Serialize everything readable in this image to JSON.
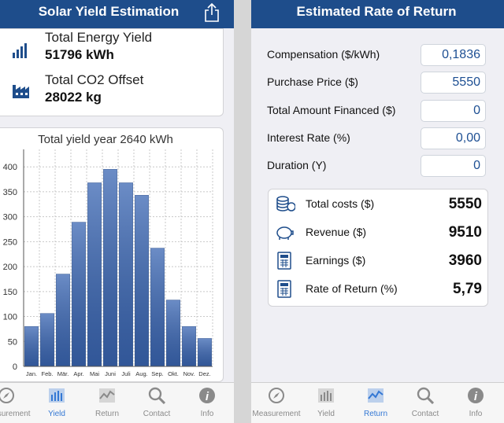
{
  "left_screen": {
    "header": {
      "title": "Solar Yield Estimation"
    },
    "summary": [
      {
        "label": "Total Energy Yield",
        "value": "51796 kWh"
      },
      {
        "label": "Total CO2 Offset",
        "value": "28022 kg"
      }
    ],
    "tabs": [
      "Measurement",
      "Yield",
      "Return",
      "Contact",
      "Info"
    ],
    "active_tab": 1
  },
  "chart_data": {
    "type": "bar",
    "title": "Total yield year 2640 kWh",
    "categories": [
      "Jan.",
      "Feb.",
      "Mär.",
      "Apr.",
      "Mai",
      "Juni",
      "Juli",
      "Aug.",
      "Sep.",
      "Okt.",
      "Nov.",
      "Dez."
    ],
    "values": [
      80,
      106,
      185,
      289,
      368,
      395,
      368,
      343,
      237,
      133,
      80,
      56
    ],
    "color": "#3a66b3",
    "ylim": [
      0,
      435
    ],
    "yticks": [
      0,
      50,
      100,
      150,
      200,
      250,
      300,
      350,
      400
    ],
    "grid": true
  },
  "right_screen": {
    "header": {
      "title": "Estimated Rate of Return"
    },
    "form": [
      {
        "label": "Compensation ($/kWh)",
        "value": "0,1836"
      },
      {
        "label": "Purchase Price ($)",
        "value": "5550"
      },
      {
        "label": "Total Amount Financed ($)",
        "value": "0"
      },
      {
        "label": "Interest Rate (%)",
        "value": "0,00"
      },
      {
        "label": "Duration (Y)",
        "value": "0"
      }
    ],
    "results": [
      {
        "label": "Total costs ($)",
        "value": "5550"
      },
      {
        "label": "Revenue ($)",
        "value": "9510"
      },
      {
        "label": "Earnings ($)",
        "value": "3960"
      },
      {
        "label": "Rate of Return (%)",
        "value": "5,79"
      }
    ],
    "tabs": [
      "Measurement",
      "Yield",
      "Return",
      "Contact",
      "Info"
    ],
    "active_tab": 2
  }
}
